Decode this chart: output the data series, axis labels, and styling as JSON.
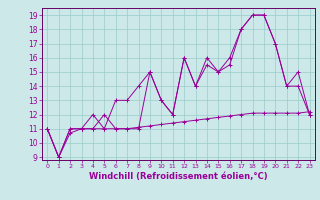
{
  "xlabel": "Windchill (Refroidissement éolien,°C)",
  "bg_color": "#cce8e8",
  "grid_color": "#99cccc",
  "line_color": "#990099",
  "spine_color": "#660066",
  "xlim": [
    -0.5,
    23.5
  ],
  "ylim": [
    8.8,
    19.5
  ],
  "xticks": [
    0,
    1,
    2,
    3,
    4,
    5,
    6,
    7,
    8,
    9,
    10,
    11,
    12,
    13,
    14,
    15,
    16,
    17,
    18,
    19,
    20,
    21,
    22,
    23
  ],
  "yticks": [
    9,
    10,
    11,
    12,
    13,
    14,
    15,
    16,
    17,
    18,
    19
  ],
  "line1_x": [
    0,
    1,
    2,
    3,
    4,
    5,
    6,
    7,
    8,
    9,
    10,
    11,
    12,
    13,
    14,
    15,
    16,
    17,
    18,
    19,
    20,
    21,
    22,
    23
  ],
  "line1_y": [
    11,
    9,
    11,
    11,
    11,
    12,
    11,
    11,
    11,
    15,
    13,
    12,
    16,
    14,
    16,
    15,
    16,
    18,
    19,
    19,
    17,
    14,
    14,
    12
  ],
  "line2_x": [
    0,
    1,
    2,
    3,
    4,
    5,
    6,
    7,
    8,
    9,
    10,
    11,
    12,
    13,
    14,
    15,
    16,
    17,
    18,
    19,
    20,
    21,
    22,
    23
  ],
  "line2_y": [
    11,
    9,
    11,
    11,
    12,
    11,
    13,
    13,
    14,
    15,
    13,
    12,
    16,
    14,
    15.5,
    15,
    15.5,
    18,
    19,
    19,
    17,
    14,
    15,
    12
  ],
  "line3_x": [
    0,
    1,
    2,
    3,
    4,
    5,
    6,
    7,
    8,
    9,
    10,
    11,
    12,
    13,
    14,
    15,
    16,
    17,
    18,
    19,
    20,
    21,
    22,
    23
  ],
  "line3_y": [
    11,
    9,
    10.7,
    11,
    11,
    11,
    11,
    11,
    11.1,
    11.2,
    11.3,
    11.4,
    11.5,
    11.6,
    11.7,
    11.8,
    11.9,
    12.0,
    12.1,
    12.1,
    12.1,
    12.1,
    12.1,
    12.2
  ],
  "tick_fontsize": 5,
  "xlabel_fontsize": 6,
  "linewidth": 0.7,
  "markersize": 3
}
